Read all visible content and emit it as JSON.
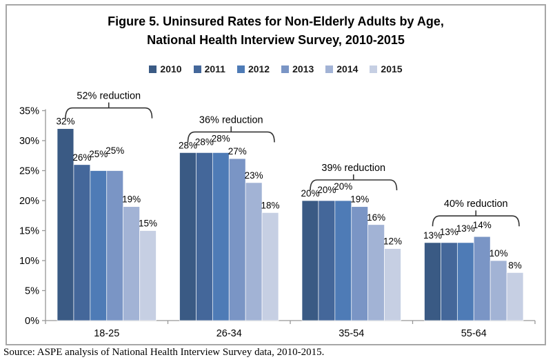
{
  "title": {
    "line1": "Figure 5. Uninsured Rates for Non-Elderly Adults by Age,",
    "line2": "National Health Interview Survey, 2010-2015"
  },
  "source": "Source: ASPE analysis of National Health Interview Survey data, 2010-2015.",
  "colors": {
    "series": [
      "#3a5a84",
      "#44679a",
      "#4e7bb6",
      "#7a95c5",
      "#a2b3d5",
      "#c6cfe3"
    ],
    "axis": "#969696",
    "frame_border": "#a6a6a6",
    "text": "#000000",
    "brace": "#333333"
  },
  "chart_data": {
    "type": "bar",
    "title": "Figure 5. Uninsured Rates for Non-Elderly Adults by Age, National Health Interview Survey, 2010-2015",
    "xlabel": "",
    "ylabel": "",
    "categories": [
      "18-25",
      "26-34",
      "35-54",
      "55-64"
    ],
    "series": [
      {
        "name": "2010",
        "values": [
          32,
          28,
          20,
          13
        ]
      },
      {
        "name": "2011",
        "values": [
          26,
          28,
          20,
          13
        ]
      },
      {
        "name": "2012",
        "values": [
          25,
          28,
          20,
          13
        ]
      },
      {
        "name": "2013",
        "values": [
          25,
          27,
          19,
          14
        ]
      },
      {
        "name": "2014",
        "values": [
          19,
          23,
          16,
          10
        ]
      },
      {
        "name": "2015",
        "values": [
          15,
          18,
          12,
          8
        ]
      }
    ],
    "annotations": [
      {
        "category": "18-25",
        "label": "52% reduction"
      },
      {
        "category": "26-34",
        "label": "36% reduction"
      },
      {
        "category": "35-54",
        "label": "39% reduction"
      },
      {
        "category": "55-64",
        "label": "40% reduction"
      }
    ],
    "data_label_suffix": "%",
    "ylim": [
      0,
      35
    ],
    "ytick_step": 5,
    "ytick_labels": [
      "0%",
      "5%",
      "10%",
      "15%",
      "20%",
      "25%",
      "30%",
      "35%"
    ],
    "grid": false,
    "legend_position": "top"
  }
}
